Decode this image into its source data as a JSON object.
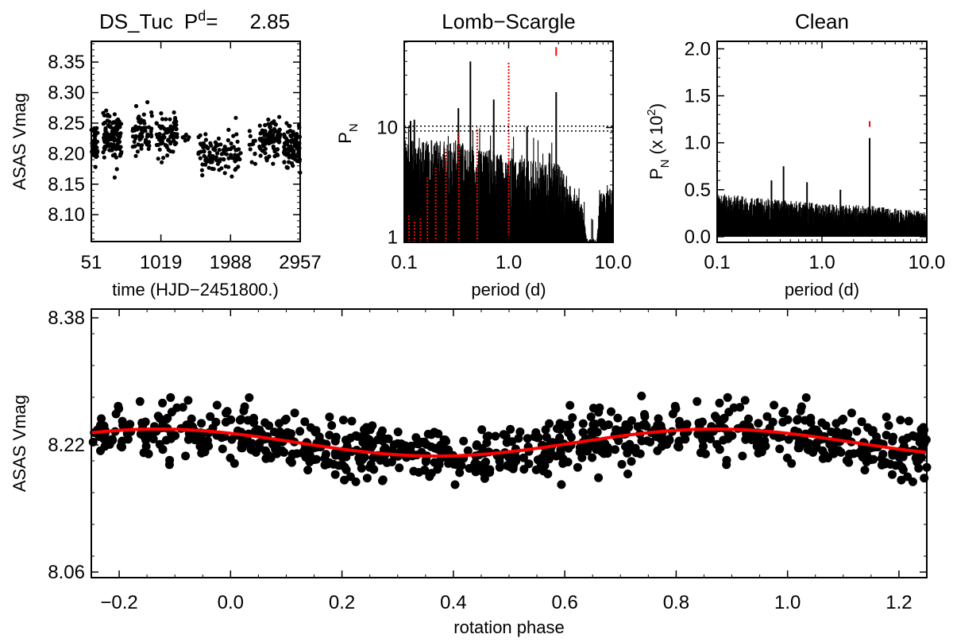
{
  "chart_data": [
    {
      "type": "scatter",
      "id": "light-curve",
      "title_star": "DS_Tuc",
      "title_period_label": "P",
      "title_period_sup": "d",
      "title_eq": "=",
      "title_period_value": "2.85",
      "xlabel": "time (HJD−2451800.)",
      "ylabel": "ASAS Vmag",
      "xlim": [
        51,
        2957
      ],
      "ylim": [
        8.056,
        8.384
      ],
      "xticks": [
        51,
        1019,
        1988,
        2957
      ],
      "xtick_labels": [
        "51",
        "1019",
        "1988",
        "2957"
      ],
      "yticks": [
        8.1,
        8.15,
        8.2,
        8.25,
        8.3,
        8.35
      ],
      "ytick_labels": [
        "8.10",
        "8.15",
        "8.20",
        "8.25",
        "8.30",
        "8.35"
      ],
      "scatter_sd": 0.02,
      "seed": 11,
      "seasons": [
        {
          "t": [
            51,
            140
          ],
          "mean": 8.218,
          "n": 40
        },
        {
          "t": [
            215,
            470
          ],
          "mean": 8.225,
          "n": 120
        },
        {
          "t": [
            625,
            900
          ],
          "mean": 8.235,
          "n": 60
        },
        {
          "t": [
            955,
            1245
          ],
          "mean": 8.228,
          "n": 75
        },
        {
          "t": [
            1320,
            1410
          ],
          "mean": 8.225,
          "n": 6
        },
        {
          "t": [
            1540,
            2130
          ],
          "mean": 8.2,
          "n": 110
        },
        {
          "t": [
            2250,
            2340
          ],
          "mean": 8.205,
          "n": 12
        },
        {
          "t": [
            2390,
            2680
          ],
          "mean": 8.222,
          "n": 95
        },
        {
          "t": [
            2725,
            2957
          ],
          "mean": 8.212,
          "n": 90
        }
      ]
    },
    {
      "type": "line",
      "id": "lomb-scargle",
      "title": "Lomb−Scargle",
      "xlabel": "period (d)",
      "ylabel_main": "P",
      "ylabel_sub": "N",
      "xscale": "log",
      "yscale": "log",
      "xlim": [
        0.1,
        10
      ],
      "ylim": [
        0.9,
        61
      ],
      "xticks": [
        0.1,
        1.0,
        10.0
      ],
      "xtick_labels": [
        "0.1",
        "1.0",
        "10.0"
      ],
      "yticks": [
        1,
        10
      ],
      "ytick_labels": [
        "1",
        "10"
      ],
      "significance_levels": [
        9.3,
        10.3
      ],
      "peaks": [
        {
          "period": 0.43,
          "power": 40
        },
        {
          "period": 2.85,
          "power": 21
        },
        {
          "period": 0.72,
          "power": 18
        },
        {
          "period": 0.33,
          "power": 15
        },
        {
          "period": 1.5,
          "power": 10.2
        },
        {
          "period": 0.115,
          "power": 11.5
        },
        {
          "period": 0.125,
          "power": 11.8
        }
      ],
      "alias_lines": [
        {
          "period": 1.0,
          "power": 39
        },
        {
          "period": 0.5,
          "power": 10
        },
        {
          "period": 0.333,
          "power": 9
        },
        {
          "period": 0.25,
          "power": 6.3
        },
        {
          "period": 0.2,
          "power": 4.4
        },
        {
          "period": 0.1667,
          "power": 3.6
        },
        {
          "period": 0.1429,
          "power": 1.5
        },
        {
          "period": 0.125,
          "power": 1.4
        },
        {
          "period": 0.111,
          "power": 1.6
        }
      ],
      "marker_period": 2.85,
      "marker_power": [
        45,
        54
      ],
      "noise_envelope": [
        [
          0.1,
          5.5
        ],
        [
          0.3,
          5.5
        ],
        [
          1.0,
          4.2
        ],
        [
          3.0,
          3.6
        ],
        [
          5.0,
          1.8
        ],
        [
          5.6,
          0.9
        ],
        [
          7.0,
          0.9
        ],
        [
          7.6,
          2.2
        ],
        [
          10.0,
          2.4
        ]
      ],
      "seed": 23
    },
    {
      "type": "line",
      "id": "clean",
      "title": "Clean",
      "xlabel": "period (d)",
      "ylabel_main": "P",
      "ylabel_sub": "N",
      "ylabel_scale": " (x 10",
      "ylabel_scale_sup": "2",
      "ylabel_close": ")",
      "xscale": "log",
      "xlim": [
        0.1,
        10
      ],
      "ylim": [
        -0.06,
        2.08
      ],
      "xticks": [
        0.1,
        1.0,
        10.0
      ],
      "xtick_labels": [
        "0.1",
        "1.0",
        "10.0"
      ],
      "yticks": [
        0.0,
        0.5,
        1.0,
        1.5,
        2.0
      ],
      "ytick_labels": [
        "0.0",
        "0.5",
        "1.0",
        "1.5",
        "2.0"
      ],
      "peaks": [
        {
          "period": 2.85,
          "power": 1.05
        },
        {
          "period": 0.43,
          "power": 0.75
        },
        {
          "period": 0.33,
          "power": 0.6
        },
        {
          "period": 0.72,
          "power": 0.58
        },
        {
          "period": 1.5,
          "power": 0.5
        }
      ],
      "marker_period": 2.85,
      "marker_power": [
        1.17,
        1.23
      ],
      "noise_envelope": [
        [
          0.1,
          0.42
        ],
        [
          1.0,
          0.32
        ],
        [
          3.0,
          0.3
        ],
        [
          10.0,
          0.24
        ]
      ],
      "seed": 37
    },
    {
      "type": "scatter",
      "id": "phase-curve",
      "xlabel": "rotation phase",
      "ylabel": "ASAS Vmag",
      "xlim": [
        -0.25,
        1.25
      ],
      "ylim": [
        8.053,
        8.391
      ],
      "xticks": [
        -0.2,
        0.0,
        0.2,
        0.4,
        0.6,
        0.8,
        1.0,
        1.2
      ],
      "xtick_labels": [
        "−0.2",
        "0.0",
        "0.2",
        "0.4",
        "0.6",
        "0.8",
        "1.0",
        "1.2"
      ],
      "yticks": [
        8.06,
        8.22,
        8.38
      ],
      "ytick_labels": [
        "8.06",
        "8.22",
        "8.38"
      ],
      "fit": {
        "mean": 8.223,
        "amplitude": 0.017,
        "phase_of_max": 0.87,
        "color": "#ff0000"
      },
      "n_points": 560,
      "scatter_sd": 0.017,
      "seed": 5
    }
  ]
}
